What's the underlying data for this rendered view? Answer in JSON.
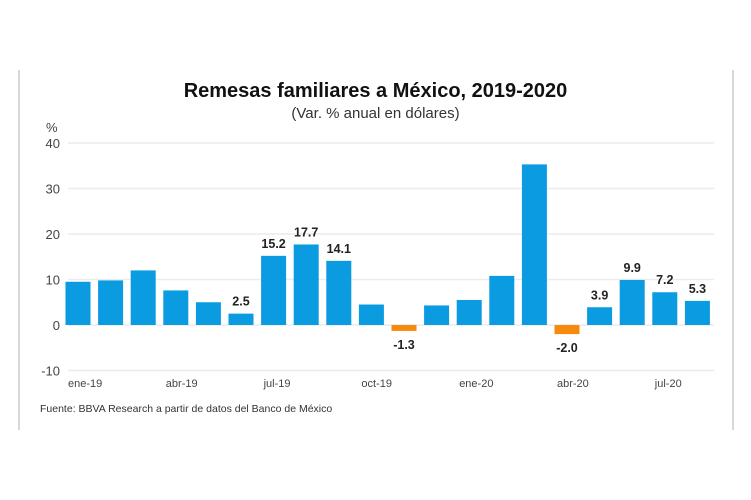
{
  "chart_data": {
    "type": "bar",
    "title": "Remesas familiares a México, 2019-2020",
    "subtitle": "(Var. % anual en dólares)",
    "ylabel": "%",
    "ylim": [
      -10,
      40
    ],
    "yticks": [
      40,
      30,
      20,
      10,
      0,
      -10
    ],
    "grid": true,
    "categories": [
      "ene-19",
      "feb-19",
      "mar-19",
      "abr-19",
      "may-19",
      "jun-19",
      "jul-19",
      "ago-19",
      "sep-19",
      "oct-19",
      "nov-19",
      "dic-19",
      "ene-20",
      "feb-20",
      "mar-20",
      "abr-20",
      "may-20",
      "jun-20",
      "jul-20",
      "ago-20"
    ],
    "values": [
      9.5,
      9.8,
      12.0,
      7.6,
      5.0,
      2.5,
      15.2,
      17.7,
      14.1,
      4.5,
      -1.3,
      4.3,
      5.5,
      10.8,
      35.3,
      -2.0,
      3.9,
      9.9,
      7.2,
      5.3
    ],
    "data_labels": {
      "5": "2.5",
      "6": "15.2",
      "7": "17.7",
      "8": "14.1",
      "10": "-1.3",
      "15": "-2.0",
      "16": "3.9",
      "17": "9.9",
      "18": "7.2",
      "19": "5.3"
    },
    "xtick_labels": {
      "0": "ene-19",
      "3": "abr-19",
      "6": "jul-19",
      "9": "oct-19",
      "12": "ene-20",
      "15": "abr-20",
      "18": "jul-20"
    },
    "colors": {
      "positive": "#0a9be0",
      "negative": "#f7890c",
      "grid": "#ececec"
    },
    "source": "Fuente: BBVA Research a partir de datos del Banco de México"
  }
}
